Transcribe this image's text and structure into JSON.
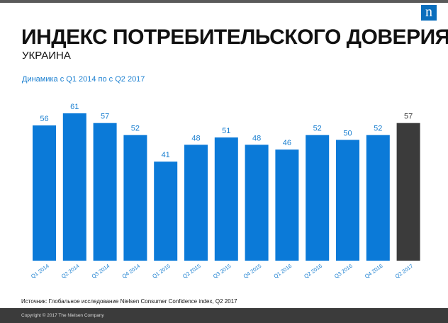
{
  "header": {
    "title": "ИНДЕКС ПОТРЕБИТЕЛЬСКОГО ДОВЕРИЯ",
    "subtitle": "УКРАИНА",
    "logo_letter": "n"
  },
  "dynamics_label": "Динамика  с Q1 2014 по с Q2 2017",
  "chart_data": {
    "type": "bar",
    "title": "ИНДЕКС ПОТРЕБИТЕЛЬСКОГО ДОВЕРИЯ",
    "subtitle": "Динамика  с Q1 2014 по с Q2 2017",
    "categories": [
      "Q1 2014",
      "Q2 2014",
      "Q3 2014",
      "Q4 2014",
      "Q1 2015",
      "Q2 2015",
      "Q3 2015",
      "Q4 2015",
      "Q1 2016",
      "Q2 2016",
      "Q3 2016",
      "Q4 2016",
      "Q2 2017"
    ],
    "values": [
      56,
      61,
      57,
      52,
      41,
      48,
      51,
      48,
      46,
      52,
      50,
      52,
      57
    ],
    "ylim": [
      0,
      66
    ],
    "xlabel": "",
    "ylabel": "",
    "highlight_index": 12,
    "colors": {
      "bar": "#0b7ad8",
      "highlight": "#3b3b3b",
      "label": "#1a7fd0",
      "highlight_label": "#3b3b3b"
    }
  },
  "source": "Источник: Глобальное исследование Nielsen Consumer Confidence index, Q2 2017",
  "copyright": "Copyright © 2017 The Nielsen Company"
}
